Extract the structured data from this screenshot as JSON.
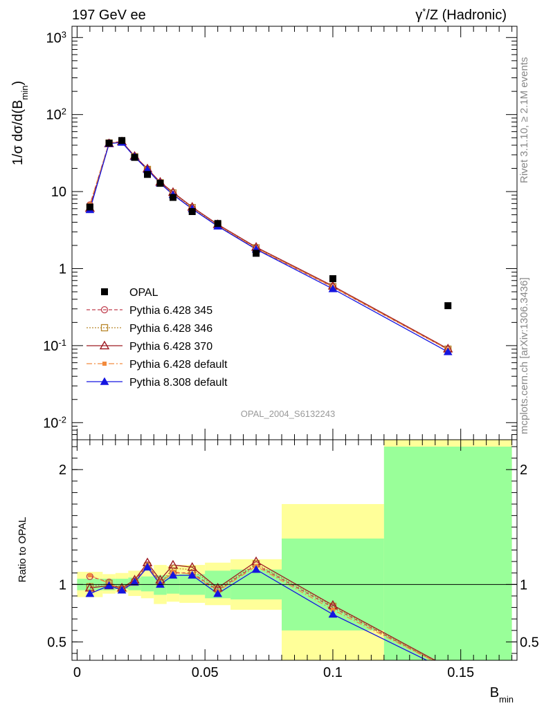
{
  "header": {
    "left": "197 GeV ee",
    "right_base": "γ",
    "right_sup": "*",
    "right_rest": "/Z (Hadronic)"
  },
  "side": {
    "rivet": "Rivet 3.1.10, ≥ 2.1M events",
    "mcplots": "mcplots.cern.ch [arXiv:1306.3436]"
  },
  "watermark": "OPAL_2004_S6132243",
  "colors": {
    "data": "#000000",
    "s345": "#c03e4e",
    "s346": "#b8862a",
    "s370": "#9e1a22",
    "s6def": "#f28a3d",
    "s8def": "#1515e0",
    "band_inner": "#99ff99",
    "band_outer": "#ffff99"
  },
  "chart_data": [
    {
      "type": "line",
      "name": "main",
      "ylabel_main": "1/σ dσ/d(B",
      "ylabel_sub": "min",
      "ylabel_end": ")",
      "ylog": true,
      "ylim": [
        0.006,
        1400
      ],
      "xlim": [
        -0.002,
        0.172
      ],
      "yticklabels": [
        {
          "v": 0.01,
          "base": "10",
          "exp": "-2"
        },
        {
          "v": 0.1,
          "base": "10",
          "exp": "-1"
        },
        {
          "v": 1,
          "base": "1",
          "exp": ""
        },
        {
          "v": 10,
          "base": "10",
          "exp": ""
        },
        {
          "v": 100,
          "base": "10",
          "exp": "2"
        },
        {
          "v": 1000,
          "base": "10",
          "exp": "3"
        }
      ],
      "x": [
        0.005,
        0.0125,
        0.0175,
        0.0225,
        0.0275,
        0.0325,
        0.0375,
        0.045,
        0.055,
        0.07,
        0.1,
        0.145
      ],
      "xbins": [
        [
          0.0,
          0.01
        ],
        [
          0.01,
          0.015
        ],
        [
          0.015,
          0.02
        ],
        [
          0.02,
          0.025
        ],
        [
          0.025,
          0.03
        ],
        [
          0.03,
          0.035
        ],
        [
          0.035,
          0.04
        ],
        [
          0.04,
          0.05
        ],
        [
          0.05,
          0.06
        ],
        [
          0.06,
          0.08
        ],
        [
          0.08,
          0.12
        ],
        [
          0.12,
          0.17
        ]
      ],
      "series": [
        {
          "name": "OPAL",
          "style": "data",
          "values": [
            6.3,
            42.5,
            46.0,
            27.8,
            16.7,
            12.8,
            8.4,
            5.5,
            3.85,
            1.58,
            0.74,
            0.33
          ]
        },
        {
          "name": "Pythia 6.428 345",
          "style": "s345",
          "values": [
            6.7,
            43.2,
            44.5,
            28.6,
            19.5,
            13.1,
            9.2,
            6.0,
            3.6,
            1.82,
            0.575,
            0.089
          ]
        },
        {
          "name": "Pythia 6.428 346",
          "style": "s346",
          "values": [
            6.2,
            42.7,
            44.0,
            28.4,
            19.4,
            13.0,
            9.6,
            6.2,
            3.7,
            1.86,
            0.585,
            0.09
          ]
        },
        {
          "name": "Pythia 6.428 370",
          "style": "s370",
          "values": [
            6.1,
            42.0,
            44.5,
            28.9,
            19.8,
            13.3,
            9.8,
            6.3,
            3.75,
            1.9,
            0.595,
            0.091
          ]
        },
        {
          "name": "Pythia 6.428 default",
          "style": "s6def",
          "values": [
            6.8,
            42.8,
            43.8,
            28.2,
            19.3,
            12.9,
            9.3,
            6.0,
            3.62,
            1.83,
            0.578,
            0.089
          ]
        },
        {
          "name": "Pythia 8.308 default",
          "style": "s8def",
          "values": [
            5.8,
            42.0,
            43.5,
            28.3,
            19.2,
            12.8,
            9.1,
            5.95,
            3.55,
            1.78,
            0.545,
            0.083
          ]
        }
      ]
    },
    {
      "type": "line",
      "name": "ratio",
      "ylabel": "Ratio to OPAL",
      "ylim": [
        0.34,
        2.26
      ],
      "yticks": [
        0.5,
        1,
        2
      ],
      "yticklabels": [
        "0.5",
        "1",
        "2"
      ],
      "xticks": [
        0,
        0.05,
        0.1,
        0.15
      ],
      "xticklabels": [
        "0",
        "0.05",
        "0.1",
        "0.15"
      ],
      "xlabel_main": "B",
      "xlabel_sub": "min",
      "band_inner": [
        [
          0.95,
          1.05
        ],
        [
          0.95,
          1.05
        ],
        [
          0.96,
          1.05
        ],
        [
          0.95,
          1.06
        ],
        [
          0.94,
          1.07
        ],
        [
          0.91,
          1.08
        ],
        [
          0.92,
          1.08
        ],
        [
          0.91,
          1.09
        ],
        [
          0.88,
          1.12
        ],
        [
          0.87,
          1.13
        ],
        [
          0.6,
          1.4
        ],
        [
          0.33,
          2.2
        ]
      ],
      "band_outer": [
        [
          0.89,
          1.11
        ],
        [
          0.92,
          1.09
        ],
        [
          0.93,
          1.1
        ],
        [
          0.9,
          1.12
        ],
        [
          0.88,
          1.13
        ],
        [
          0.83,
          1.17
        ],
        [
          0.85,
          1.16
        ],
        [
          0.84,
          1.17
        ],
        [
          0.82,
          1.19
        ],
        [
          0.78,
          1.22
        ],
        [
          0.33,
          1.7
        ],
        [
          0.33,
          2.3
        ]
      ],
      "series": [
        {
          "name": "Pythia 6.428 345",
          "style": "s345",
          "values": [
            1.07,
            1.02,
            0.96,
            1.03,
            1.17,
            1.02,
            1.1,
            1.1,
            0.95,
            1.17,
            0.8,
            0.27
          ]
        },
        {
          "name": "Pythia 6.428 346",
          "style": "s346",
          "values": [
            0.98,
            1.01,
            0.96,
            1.02,
            1.16,
            1.01,
            1.14,
            1.13,
            0.96,
            1.18,
            0.81,
            0.27
          ]
        },
        {
          "name": "Pythia 6.428 370",
          "style": "s370",
          "values": [
            0.97,
            0.99,
            0.97,
            1.04,
            1.19,
            1.04,
            1.17,
            1.15,
            0.97,
            1.2,
            0.82,
            0.28
          ]
        },
        {
          "name": "Pythia 6.428 default",
          "style": "s6def",
          "values": [
            1.08,
            1.01,
            0.95,
            1.01,
            1.16,
            1.01,
            1.11,
            1.09,
            0.94,
            1.16,
            0.78,
            0.27
          ]
        },
        {
          "name": "Pythia 8.308 default",
          "style": "s8def",
          "values": [
            0.92,
            0.99,
            0.95,
            1.02,
            1.15,
            1.0,
            1.08,
            1.08,
            0.92,
            1.13,
            0.74,
            0.25
          ]
        }
      ]
    }
  ]
}
